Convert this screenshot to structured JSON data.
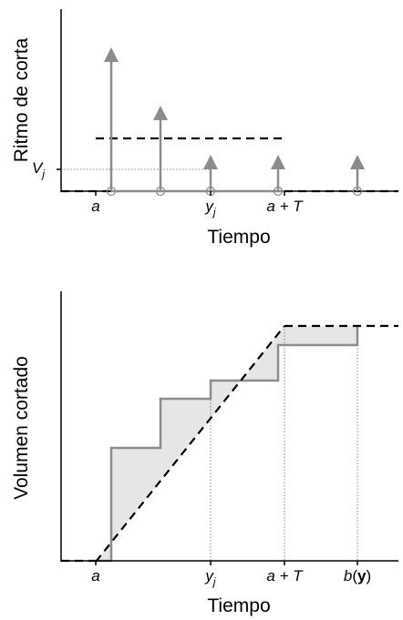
{
  "top": {
    "ylabel": "Ritmo de corta",
    "xlabel": "Tiempo",
    "v_label": "V",
    "v_sub": "j",
    "tick_a": "a",
    "tick_y": "y",
    "tick_y_sub": "j",
    "tick_aT": "a + T"
  },
  "bottom": {
    "ylabel": "Volumen cortado",
    "xlabel": "Tiempo",
    "tick_a": "a",
    "tick_y": "y",
    "tick_y_sub": "j",
    "tick_aT": "a + T",
    "tick_b": "b",
    "tick_b_open": "(",
    "tick_b_arg": "y",
    "tick_b_close": ")"
  },
  "colors": {
    "gray": "#8c8c8c",
    "fill": "#e6e6e6",
    "black": "#000000"
  }
}
